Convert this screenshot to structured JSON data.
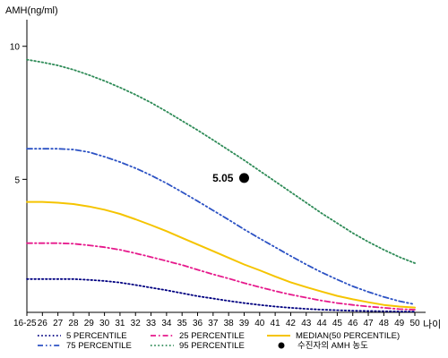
{
  "chart_data": {
    "type": "line",
    "ylabel": "AMH(ng/ml)",
    "xlabel": "나이",
    "categories": [
      "16-25",
      "26",
      "27",
      "28",
      "29",
      "30",
      "31",
      "32",
      "33",
      "34",
      "35",
      "36",
      "37",
      "38",
      "39",
      "40",
      "41",
      "42",
      "43",
      "44",
      "45",
      "46",
      "47",
      "48",
      "49",
      "50"
    ],
    "y_ticks": [
      5,
      10
    ],
    "ylim": [
      0,
      11
    ],
    "grid": false,
    "legend_position": "bottom",
    "series": [
      {
        "name": "5 PERCENTILE",
        "color": "#000080",
        "dash": "dotted",
        "values": [
          1.25,
          1.25,
          1.25,
          1.25,
          1.22,
          1.18,
          1.12,
          1.03,
          0.93,
          0.83,
          0.72,
          0.61,
          0.52,
          0.43,
          0.35,
          0.28,
          0.22,
          0.17,
          0.13,
          0.1,
          0.08,
          0.06,
          0.05,
          0.04,
          0.03,
          0.03
        ]
      },
      {
        "name": "25 PERCENTILE",
        "color": "#e6198c",
        "dash": "dashdot",
        "values": [
          2.6,
          2.6,
          2.6,
          2.58,
          2.52,
          2.45,
          2.35,
          2.22,
          2.08,
          1.93,
          1.78,
          1.6,
          1.43,
          1.27,
          1.1,
          0.95,
          0.8,
          0.67,
          0.55,
          0.44,
          0.35,
          0.28,
          0.22,
          0.17,
          0.12,
          0.1
        ]
      },
      {
        "name": "MEDIAN(50 PERCENTILE)",
        "color": "#f5c400",
        "dash": "solid",
        "values": [
          4.15,
          4.15,
          4.12,
          4.07,
          3.98,
          3.86,
          3.7,
          3.5,
          3.28,
          3.05,
          2.8,
          2.55,
          2.3,
          2.05,
          1.8,
          1.58,
          1.35,
          1.13,
          0.95,
          0.78,
          0.62,
          0.49,
          0.38,
          0.28,
          0.22,
          0.18
        ]
      },
      {
        "name": "75 PERCENTILE",
        "color": "#2c52c4",
        "dash": "dashdotdot",
        "values": [
          6.15,
          6.15,
          6.15,
          6.12,
          6.02,
          5.85,
          5.65,
          5.42,
          5.15,
          4.85,
          4.52,
          4.18,
          3.83,
          3.48,
          3.12,
          2.78,
          2.45,
          2.12,
          1.8,
          1.5,
          1.23,
          0.98,
          0.77,
          0.58,
          0.42,
          0.3
        ]
      },
      {
        "name": "95 PERCENTILE",
        "color": "#2e8b57",
        "dash": "dotted",
        "values": [
          9.5,
          9.4,
          9.28,
          9.12,
          8.92,
          8.7,
          8.45,
          8.18,
          7.88,
          7.55,
          7.2,
          6.85,
          6.48,
          6.1,
          5.72,
          5.32,
          4.92,
          4.52,
          4.12,
          3.72,
          3.35,
          2.98,
          2.65,
          2.35,
          2.08,
          1.85
        ]
      }
    ],
    "patient_point": {
      "name": "수진자의 AMH 농도",
      "x": "39",
      "y": 5.05,
      "label": "5.05"
    }
  }
}
